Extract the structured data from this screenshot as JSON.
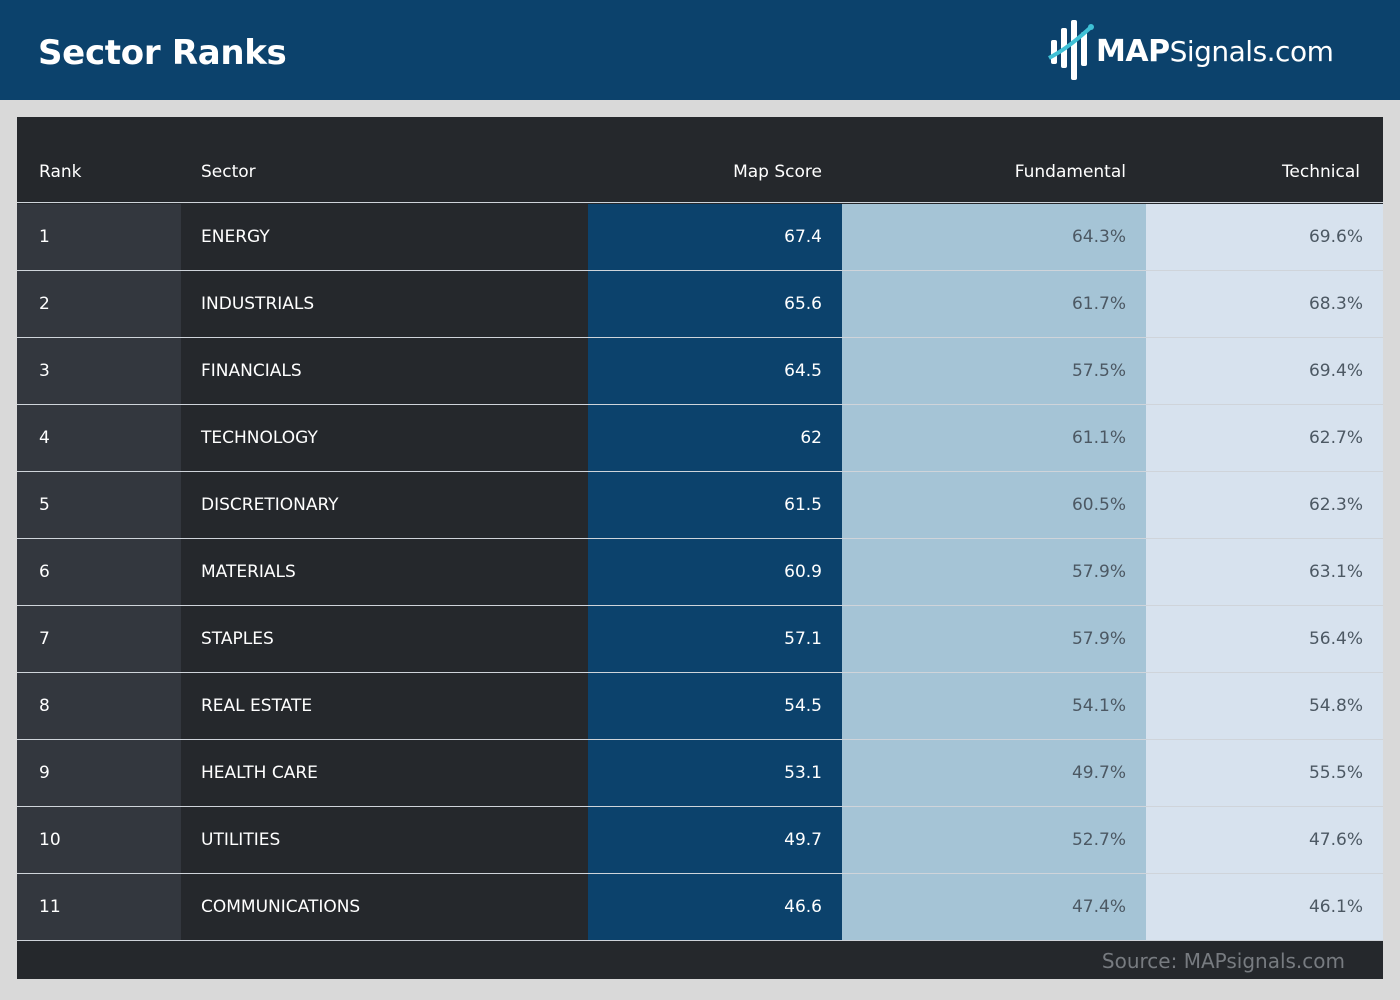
{
  "header": {
    "title": "Sector Ranks",
    "logo_bold": "MAP",
    "logo_rest": "Signals.com"
  },
  "colors": {
    "header_bg": "#0c426c",
    "map_score_bg": "#0c426c",
    "fundamental_bg": "#a5c4d6",
    "technical_bg": "#d7e2ee",
    "table_dark": "#25282c",
    "rank_col": "#33373e"
  },
  "chart_data": {
    "type": "table",
    "columns": [
      "Rank",
      "Sector",
      "Map Score",
      "Fundamental",
      "Technical"
    ],
    "rows": [
      [
        "1",
        "ENERGY",
        "67.4",
        "64.3%",
        "69.6%"
      ],
      [
        "2",
        "INDUSTRIALS",
        "65.6",
        "61.7%",
        "68.3%"
      ],
      [
        "3",
        "FINANCIALS",
        "64.5",
        "57.5%",
        "69.4%"
      ],
      [
        "4",
        "TECHNOLOGY",
        "62",
        "61.1%",
        "62.7%"
      ],
      [
        "5",
        "DISCRETIONARY",
        "61.5",
        "60.5%",
        "62.3%"
      ],
      [
        "6",
        "MATERIALS",
        "60.9",
        "57.9%",
        "63.1%"
      ],
      [
        "7",
        "STAPLES",
        "57.1",
        "57.9%",
        "56.4%"
      ],
      [
        "8",
        "REAL ESTATE",
        "54.5",
        "54.1%",
        "54.8%"
      ],
      [
        "9",
        "HEALTH CARE",
        "53.1",
        "49.7%",
        "55.5%"
      ],
      [
        "10",
        "UTILITIES",
        "49.7",
        "52.7%",
        "47.6%"
      ],
      [
        "11",
        "COMMUNICATIONS",
        "46.6",
        "47.4%",
        "46.1%"
      ]
    ]
  },
  "source": "Source: MAPsignals.com"
}
